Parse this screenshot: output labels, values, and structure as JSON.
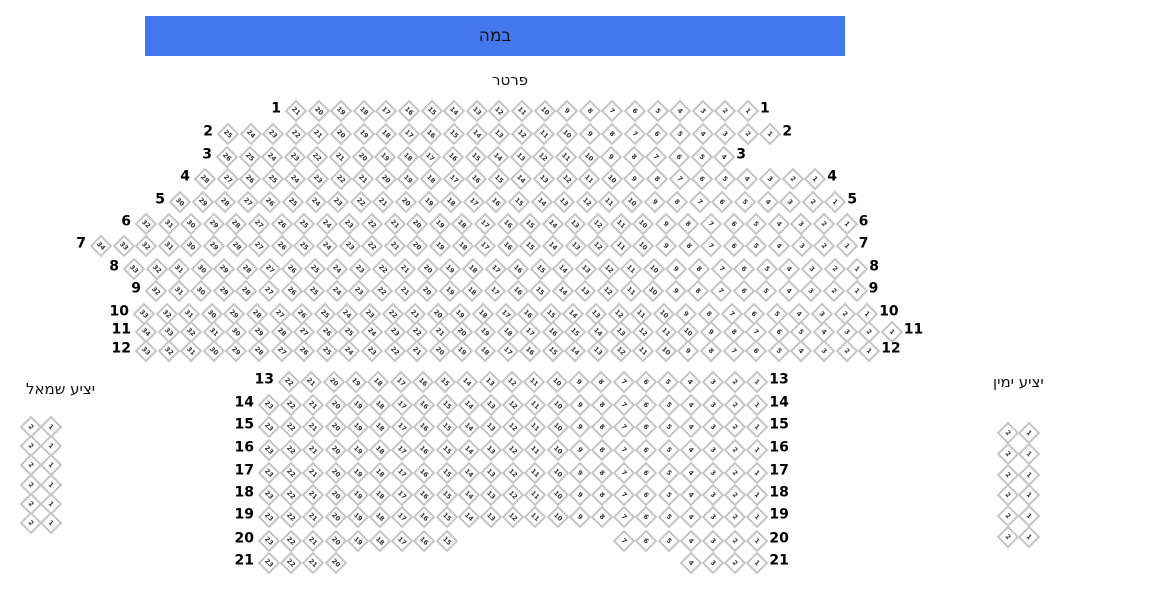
{
  "stage": {
    "label": "במה",
    "color": "#4577ee"
  },
  "sections": {
    "parterre": {
      "title": "פרטר",
      "rows": [
        {
          "label": "1",
          "seats": [
            [
              21,
              1
            ]
          ]
        },
        {
          "label": "2",
          "seats": [
            [
              25,
              1
            ]
          ]
        },
        {
          "label": "3",
          "seats": [
            [
              26,
              4
            ]
          ]
        },
        {
          "label": "4",
          "seats": [
            [
              28,
              1
            ]
          ]
        },
        {
          "label": "5",
          "seats": [
            [
              30,
              1
            ]
          ]
        },
        {
          "label": "6",
          "seats": [
            [
              32,
              1
            ]
          ]
        },
        {
          "label": "7",
          "seats": [
            [
              34,
              1
            ]
          ]
        },
        {
          "label": "8",
          "seats": [
            [
              33,
              1
            ]
          ]
        },
        {
          "label": "9",
          "seats": [
            [
              32,
              1
            ]
          ]
        },
        {
          "label": "10",
          "seats": [
            [
              33,
              1
            ]
          ]
        },
        {
          "label": "11",
          "seats": [
            [
              34,
              1
            ]
          ]
        },
        {
          "label": "12",
          "seats": [
            [
              33,
              1
            ]
          ]
        },
        {
          "label": "13",
          "seats": [
            [
              22,
              1
            ]
          ]
        },
        {
          "label": "14",
          "seats": [
            [
              23,
              1
            ]
          ]
        },
        {
          "label": "15",
          "seats": [
            [
              23,
              1
            ]
          ]
        },
        {
          "label": "16",
          "seats": [
            [
              23,
              1
            ]
          ]
        },
        {
          "label": "17",
          "seats": [
            [
              23,
              1
            ]
          ]
        },
        {
          "label": "18",
          "seats": [
            [
              23,
              1
            ]
          ]
        },
        {
          "label": "19",
          "seats": [
            [
              23,
              1
            ]
          ]
        },
        {
          "label": "20",
          "seats": [
            [
              23,
              15
            ],
            [
              7,
              1
            ]
          ]
        },
        {
          "label": "21",
          "seats": [
            [
              23,
              20
            ],
            [
              4,
              1
            ]
          ]
        }
      ]
    },
    "left_balcony": {
      "title": "יציע שמאל",
      "rows": 6,
      "seats": [
        2,
        1
      ]
    },
    "right_balcony": {
      "title": "יציע ימין",
      "rows": 6,
      "seats": [
        2,
        1
      ]
    }
  },
  "seat_colors": {
    "border": "#c6c6c6",
    "fill": "#ffffff"
  }
}
